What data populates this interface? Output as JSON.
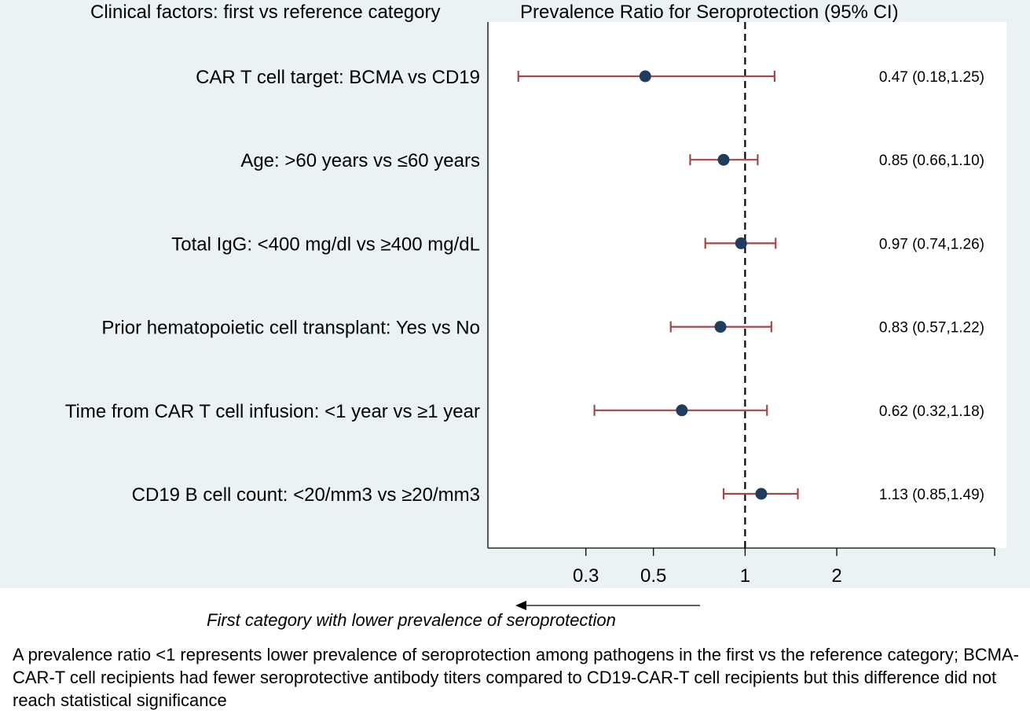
{
  "headers": {
    "left": "Clinical factors: first vs reference category",
    "right": "Prevalence Ratio for Seroprotection (95% CI)"
  },
  "chart_data": {
    "type": "scatter",
    "subtype": "forest-plot",
    "x_scale": "log",
    "xlim": [
      0.143,
      6.6
    ],
    "reference_line": 1,
    "xticks": [
      {
        "value": 0.3,
        "label": "0.3"
      },
      {
        "value": 0.5,
        "label": "0.5"
      },
      {
        "value": 1,
        "label": "1"
      },
      {
        "value": 2,
        "label": "2"
      }
    ],
    "rows": [
      {
        "label": "CAR T cell target: BCMA vs CD19",
        "estimate": 0.47,
        "lower": 0.18,
        "upper": 1.25,
        "text": "0.47 (0.18,1.25)"
      },
      {
        "label": "Age: >60 years vs ≤60 years",
        "estimate": 0.85,
        "lower": 0.66,
        "upper": 1.1,
        "text": "0.85 (0.66,1.10)"
      },
      {
        "label": "Total IgG: <400 mg/dl vs ≥400 mg/dL",
        "estimate": 0.97,
        "lower": 0.74,
        "upper": 1.26,
        "text": "0.97 (0.74,1.26)"
      },
      {
        "label": "Prior hematopoietic cell transplant: Yes vs No",
        "estimate": 0.83,
        "lower": 0.57,
        "upper": 1.22,
        "text": "0.83 (0.57,1.22)"
      },
      {
        "label": "Time from CAR T cell infusion: <1 year vs ≥1 year",
        "estimate": 0.62,
        "lower": 0.32,
        "upper": 1.18,
        "text": "0.62 (0.32,1.18)"
      },
      {
        "label": "CD19 B cell count:  <20/mm3 vs ≥20/mm3",
        "estimate": 1.13,
        "lower": 0.85,
        "upper": 1.49,
        "text": "1.13 (0.85,1.49)"
      }
    ],
    "direction_label": "First category with lower prevalence of seroprotection",
    "colors": {
      "marker": "#1f3d5c",
      "ci": "#a0484c",
      "background": "#eaf2f3",
      "plot": "#ffffff"
    }
  },
  "footnote": "A prevalence ratio <1 represents lower prevalence of seroprotection among pathogens in the first vs the reference category; BCMA-CAR-T cell recipients had fewer seroprotective antibody titers compared to CD19-CAR-T cell recipients but this difference did not reach statistical significance"
}
